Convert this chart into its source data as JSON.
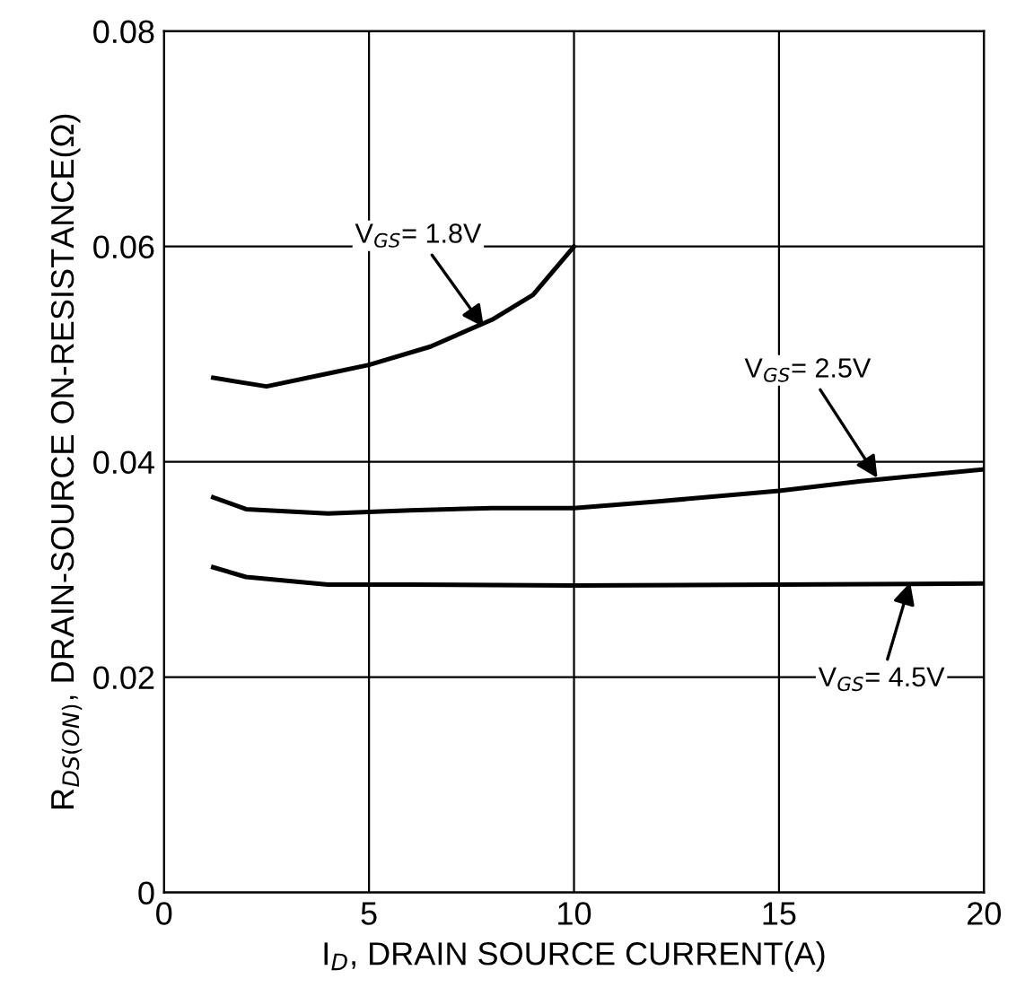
{
  "chart_data": {
    "type": "line",
    "xlabel": "I$_{D}$, DRAIN SOURCE CURRENT(A)",
    "ylabel": "R$_{DS(ON)}$, DRAIN-SOURCE ON-RESISTANCE(Ω)",
    "xlim": [
      0,
      20
    ],
    "xticks": [
      0,
      5,
      10,
      15,
      20
    ],
    "ylim": [
      0,
      0.08
    ],
    "yticks": [
      0,
      0.02,
      0.04,
      0.06,
      0.08
    ],
    "grid": true,
    "color": "#000000",
    "series": [
      {
        "x": [
          1.2,
          2.5,
          4,
          5,
          6.5,
          8,
          9,
          10
        ],
        "values": [
          0.0478,
          0.047,
          0.0482,
          0.049,
          0.0507,
          0.0532,
          0.0555,
          0.06
        ]
      },
      {
        "x": [
          1.2,
          2,
          4,
          6,
          8,
          10,
          12,
          15,
          17,
          20
        ],
        "values": [
          0.0367,
          0.0356,
          0.0352,
          0.0355,
          0.0357,
          0.0357,
          0.0363,
          0.0373,
          0.0382,
          0.0393
        ]
      },
      {
        "x": [
          1.2,
          2,
          4,
          6,
          10,
          15,
          20
        ],
        "values": [
          0.0302,
          0.0293,
          0.0286,
          0.0286,
          0.0285,
          0.0286,
          0.0287
        ]
      }
    ],
    "annotations": [
      {
        "text": "V$_{GS}$= 1.8V",
        "x": 7.8,
        "y": 0.0525
      },
      {
        "text": "V$_{GS}$= 2.5V",
        "x": 17.4,
        "y": 0.0385
      },
      {
        "text": "V$_{GS}$= 4.5V",
        "x": 18.2,
        "y": 0.0288
      }
    ]
  }
}
